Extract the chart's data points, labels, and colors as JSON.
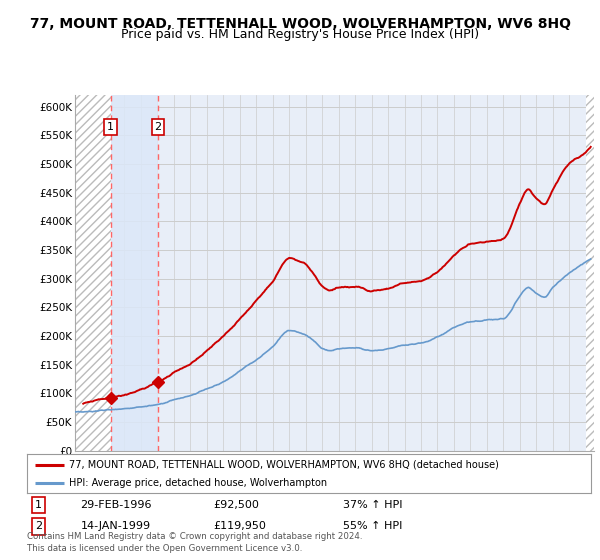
{
  "title": "77, MOUNT ROAD, TETTENHALL WOOD, WOLVERHAMPTON, WV6 8HQ",
  "subtitle": "Price paid vs. HM Land Registry's House Price Index (HPI)",
  "ylim": [
    0,
    620000
  ],
  "yticks": [
    0,
    50000,
    100000,
    150000,
    200000,
    250000,
    300000,
    350000,
    400000,
    450000,
    500000,
    550000,
    600000
  ],
  "ytick_labels": [
    "£0",
    "£50K",
    "£100K",
    "£150K",
    "£200K",
    "£250K",
    "£300K",
    "£350K",
    "£400K",
    "£450K",
    "£500K",
    "£550K",
    "£600K"
  ],
  "xlim_start": 1994.0,
  "xlim_end": 2025.5,
  "sale1_x": 1996.16,
  "sale1_y": 92500,
  "sale1_label": "1",
  "sale2_x": 1999.04,
  "sale2_y": 119950,
  "sale2_label": "2",
  "sale1_date": "29-FEB-1996",
  "sale1_price": "£92,500",
  "sale1_hpi": "37% ↑ HPI",
  "sale2_date": "14-JAN-1999",
  "sale2_price": "£119,950",
  "sale2_hpi": "55% ↑ HPI",
  "legend_line1": "77, MOUNT ROAD, TETTENHALL WOOD, WOLVERHAMPTON, WV6 8HQ (detached house)",
  "legend_line2": "HPI: Average price, detached house, Wolverhampton",
  "footer": "Contains HM Land Registry data © Crown copyright and database right 2024.\nThis data is licensed under the Open Government Licence v3.0.",
  "bg_color": "#e8eef8",
  "plot_bg": "#ffffff",
  "red_line_color": "#cc0000",
  "blue_line_color": "#6699cc",
  "sale_dot_color": "#cc0000",
  "vline_color": "#ff6666",
  "grid_color": "#cccccc",
  "title_fontsize": 10,
  "subtitle_fontsize": 9,
  "label_box_color": "#cc0000"
}
